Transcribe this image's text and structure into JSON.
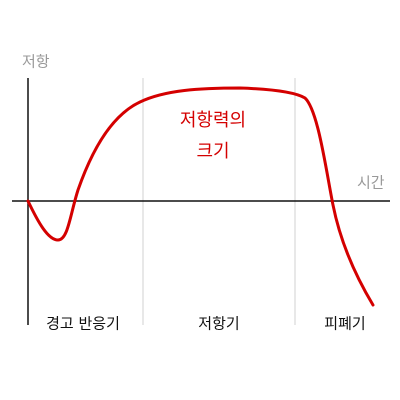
{
  "axes": {
    "y_label": "저항",
    "x_label": "시간"
  },
  "annotation": {
    "lines": [
      "저항력의",
      "크기"
    ]
  },
  "phases": [
    "경고 반응기",
    "저항기",
    "피폐기"
  ]
}
